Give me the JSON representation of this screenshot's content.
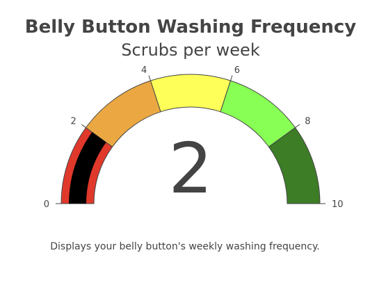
{
  "chart_data": {
    "type": "gauge",
    "title": "Belly Button Washing Frequency",
    "subtitle": "Scrubs per week",
    "value": 2,
    "value_label": "2",
    "range": [
      0,
      10
    ],
    "ticks": [
      0,
      2,
      4,
      6,
      8,
      10
    ],
    "tick_labels": [
      "0",
      "2",
      "4",
      "6",
      "8",
      "10"
    ],
    "steps": [
      {
        "range": [
          0,
          2
        ],
        "color": "#e0392b"
      },
      {
        "range": [
          2,
          4
        ],
        "color": "#eba842"
      },
      {
        "range": [
          4,
          6
        ],
        "color": "#ffff59"
      },
      {
        "range": [
          6,
          8
        ],
        "color": "#88ff55"
      },
      {
        "range": [
          8,
          10
        ],
        "color": "#3d7d26"
      }
    ],
    "bar_color": "#000000"
  },
  "caption": "Displays your belly button's weekly washing frequency."
}
